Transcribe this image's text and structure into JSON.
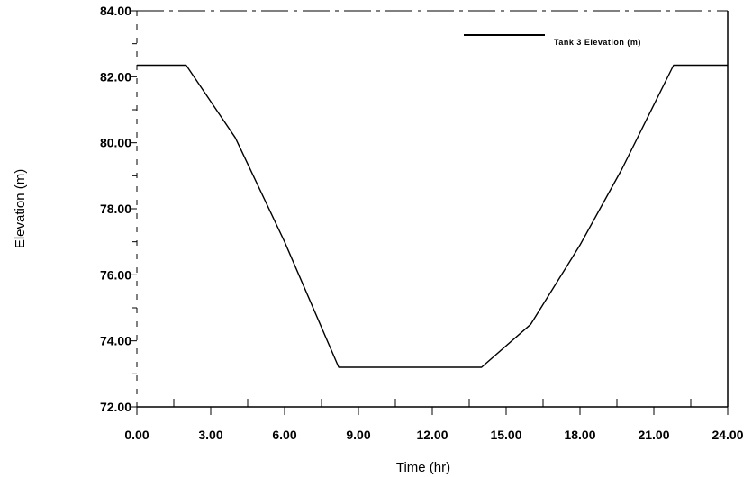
{
  "chart_data": {
    "type": "line",
    "title": "",
    "xlabel": "Time (hr)",
    "ylabel": "Elevation (m)",
    "xlim": [
      0,
      24
    ],
    "ylim": [
      72,
      84
    ],
    "x_ticks": [
      "0.00",
      "3.00",
      "6.00",
      "9.00",
      "12.00",
      "15.00",
      "18.00",
      "21.00",
      "24.00"
    ],
    "y_ticks": [
      "72.00",
      "74.00",
      "76.00",
      "78.00",
      "80.00",
      "82.00",
      "84.00"
    ],
    "grid": false,
    "legend_position": "top-right",
    "series": [
      {
        "name": "Tank 3  Elevation (m)",
        "color": "#000000",
        "x": [
          0,
          2,
          4,
          6,
          8.2,
          10,
          12,
          14,
          16,
          18,
          19.7,
          21.8,
          24
        ],
        "y": [
          82.35,
          82.35,
          80.15,
          77.0,
          73.2,
          73.2,
          73.2,
          73.2,
          74.5,
          76.9,
          79.2,
          82.35,
          82.35
        ]
      }
    ]
  }
}
